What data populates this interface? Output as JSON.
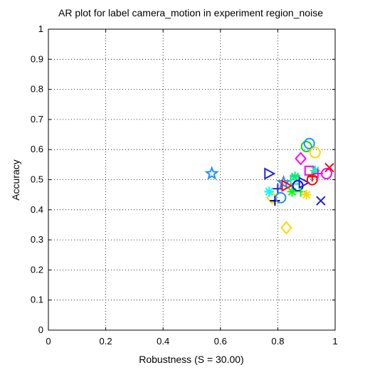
{
  "chart_data": {
    "type": "scatter",
    "title": "AR plot for label camera_motion in experiment region_noise",
    "xlabel": "Robustness (S = 30.00)",
    "ylabel": "Accuracy",
    "xlim": [
      0,
      1
    ],
    "ylim": [
      0,
      1
    ],
    "xticks": [
      "0",
      "0.2",
      "0.4",
      "0.6",
      "0.8",
      "1"
    ],
    "yticks": [
      "0",
      "0.1",
      "0.2",
      "0.3",
      "0.4",
      "0.5",
      "0.6",
      "0.7",
      "0.8",
      "0.9",
      "1"
    ],
    "grid": true,
    "legend": "none",
    "points": [
      {
        "x": 0.57,
        "y": 0.52,
        "marker": "pentagram",
        "color": "#1e90ff"
      },
      {
        "x": 0.77,
        "y": 0.52,
        "marker": "triangle-right",
        "color": "#2222dd"
      },
      {
        "x": 0.78,
        "y": 0.44,
        "marker": "diamond",
        "color": "#ffd700"
      },
      {
        "x": 0.77,
        "y": 0.46,
        "marker": "asterisk",
        "color": "#00ffff"
      },
      {
        "x": 0.79,
        "y": 0.43,
        "marker": "plus",
        "color": "#000080"
      },
      {
        "x": 0.8,
        "y": 0.47,
        "marker": "plus",
        "color": "#2222dd"
      },
      {
        "x": 0.81,
        "y": 0.44,
        "marker": "circle",
        "color": "#1e90ff"
      },
      {
        "x": 0.82,
        "y": 0.49,
        "marker": "pentagram",
        "color": "#1e90ff"
      },
      {
        "x": 0.83,
        "y": 0.48,
        "marker": "triangle-right",
        "color": "#ff0000"
      },
      {
        "x": 0.83,
        "y": 0.34,
        "marker": "diamond",
        "color": "#ffd700"
      },
      {
        "x": 0.85,
        "y": 0.46,
        "marker": "asterisk",
        "color": "#00ff00"
      },
      {
        "x": 0.86,
        "y": 0.51,
        "marker": "asterisk",
        "color": "#00ee77"
      },
      {
        "x": 0.86,
        "y": 0.5,
        "marker": "square",
        "color": "#00ee77"
      },
      {
        "x": 0.87,
        "y": 0.48,
        "marker": "circle",
        "color": "#0000ff"
      },
      {
        "x": 0.88,
        "y": 0.46,
        "marker": "plus",
        "color": "#00ff00"
      },
      {
        "x": 0.88,
        "y": 0.57,
        "marker": "diamond",
        "color": "#ff00ff"
      },
      {
        "x": 0.89,
        "y": 0.49,
        "marker": "triangle-right",
        "color": "#2222dd"
      },
      {
        "x": 0.9,
        "y": 0.45,
        "marker": "asterisk",
        "color": "#ffd700"
      },
      {
        "x": 0.9,
        "y": 0.61,
        "marker": "circle",
        "color": "#00dd00"
      },
      {
        "x": 0.91,
        "y": 0.62,
        "marker": "circle",
        "color": "#1e90ff"
      },
      {
        "x": 0.91,
        "y": 0.53,
        "marker": "square",
        "color": "#ff00ff"
      },
      {
        "x": 0.92,
        "y": 0.51,
        "marker": "plus",
        "color": "#ff0000"
      },
      {
        "x": 0.92,
        "y": 0.5,
        "marker": "circle",
        "color": "#ff0000"
      },
      {
        "x": 0.93,
        "y": 0.59,
        "marker": "circle",
        "color": "#ffd700"
      },
      {
        "x": 0.93,
        "y": 0.53,
        "marker": "asterisk",
        "color": "#00ffaa"
      },
      {
        "x": 0.94,
        "y": 0.52,
        "marker": "plus",
        "color": "#ff00ff"
      },
      {
        "x": 0.95,
        "y": 0.43,
        "marker": "x",
        "color": "#2222dd"
      },
      {
        "x": 0.97,
        "y": 0.52,
        "marker": "circle",
        "color": "#ff00ff"
      },
      {
        "x": 0.98,
        "y": 0.54,
        "marker": "x",
        "color": "#ff0000"
      }
    ]
  }
}
